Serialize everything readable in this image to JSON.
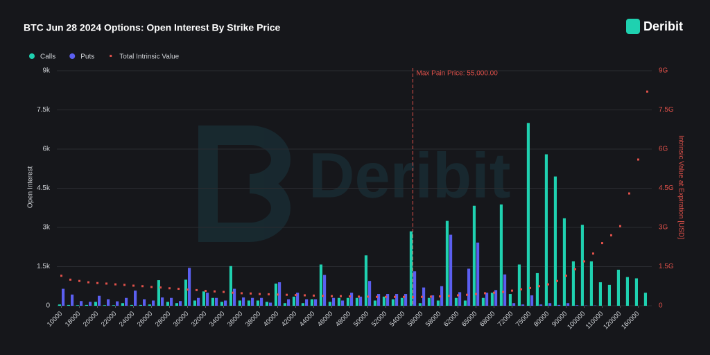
{
  "chart_data": {
    "type": "bar",
    "title": "BTC Jun 28 2024 Options: Open Interest By Strike Price",
    "brand": "Deribit",
    "ylabel": "Open Interest",
    "y2label": "Intrinsic Value at Expiration [USD]",
    "annotation": "Max Pain Price: 55,000.00",
    "categories": [
      "10000",
      null,
      "18000",
      null,
      "20000",
      null,
      "22000",
      null,
      "24000",
      null,
      "26000",
      null,
      "28000",
      null,
      "30000",
      null,
      "32000",
      null,
      "34000",
      null,
      "36000",
      null,
      "38000",
      null,
      "40000",
      null,
      "42000",
      null,
      "44000",
      null,
      "46000",
      null,
      "48000",
      null,
      "50000",
      null,
      "52000",
      null,
      "54000",
      null,
      "56000",
      null,
      "58000",
      null,
      "62000",
      null,
      "65000",
      null,
      "68000",
      null,
      "72000",
      null,
      "75000",
      null,
      "80000",
      null,
      "90000",
      null,
      "100000",
      null,
      "110000",
      null,
      "120000",
      null,
      "160000",
      null
    ],
    "series": [
      {
        "name": "Calls",
        "color": "#1fd1b0",
        "values": [
          50,
          30,
          20,
          30,
          150,
          20,
          20,
          100,
          30,
          30,
          50,
          980,
          150,
          100,
          1000,
          200,
          550,
          300,
          150,
          1520,
          200,
          200,
          200,
          150,
          850,
          100,
          350,
          100,
          250,
          1580,
          150,
          300,
          300,
          300,
          1930,
          200,
          350,
          250,
          300,
          2850,
          100,
          300,
          200,
          3250,
          300,
          200,
          3830,
          300,
          500,
          3880,
          450,
          1580,
          7000,
          1250,
          5800,
          4950,
          3350,
          1700,
          3100,
          1700,
          900,
          800,
          1380,
          1100,
          1050,
          500
        ]
      },
      {
        "name": "Puts",
        "color": "#5b5ff0",
        "values": [
          650,
          430,
          180,
          150,
          380,
          250,
          170,
          300,
          580,
          250,
          200,
          320,
          300,
          180,
          1450,
          300,
          500,
          300,
          200,
          650,
          320,
          300,
          300,
          120,
          900,
          250,
          500,
          250,
          250,
          1180,
          300,
          200,
          500,
          350,
          950,
          450,
          450,
          450,
          450,
          1320,
          700,
          400,
          750,
          2720,
          520,
          1420,
          2420,
          500,
          600,
          1200,
          100,
          50,
          400,
          50,
          100,
          30,
          100,
          20,
          10,
          10,
          0,
          0,
          0,
          0,
          0,
          0
        ]
      },
      {
        "name": "Total Intrinsic Value",
        "color": "#e0514a",
        "axis": "y2",
        "values": [
          1.15,
          1.0,
          0.95,
          0.9,
          0.87,
          0.85,
          0.82,
          0.8,
          0.77,
          0.75,
          0.72,
          0.7,
          0.67,
          0.65,
          0.62,
          0.6,
          0.57,
          0.55,
          0.53,
          0.5,
          0.48,
          0.47,
          0.45,
          0.44,
          0.43,
          0.42,
          0.41,
          0.4,
          0.39,
          0.38,
          0.37,
          0.37,
          0.36,
          0.35,
          0.35,
          0.34,
          0.34,
          0.34,
          0.34,
          0.33,
          0.34,
          0.35,
          0.36,
          0.38,
          0.4,
          0.42,
          0.45,
          0.48,
          0.5,
          0.53,
          0.58,
          0.63,
          0.68,
          0.75,
          0.82,
          0.95,
          1.15,
          1.4,
          1.7,
          2.0,
          2.4,
          2.7,
          3.05,
          4.3,
          5.6,
          8.2
        ]
      }
    ],
    "ylim": [
      0,
      9000
    ],
    "yticks": [
      0,
      {
        "value": 1500,
        "label": "1.5k"
      },
      {
        "value": 3000,
        "label": "3k"
      },
      {
        "value": 4500,
        "label": "4.5k"
      },
      {
        "value": 6000,
        "label": "6k"
      },
      {
        "value": 7500,
        "label": "7.5k"
      },
      {
        "value": 9000,
        "label": "9k"
      }
    ],
    "y2lim": [
      0,
      9
    ],
    "y2ticks": [
      0,
      {
        "value": 1.5,
        "label": "1.5G"
      },
      {
        "value": 3,
        "label": "3G"
      },
      {
        "value": 4.5,
        "label": "4.5G"
      },
      {
        "value": 6,
        "label": "6G"
      },
      {
        "value": 7.5,
        "label": "7.5G"
      },
      {
        "value": 9,
        "label": "9G"
      }
    ],
    "grid": true
  }
}
